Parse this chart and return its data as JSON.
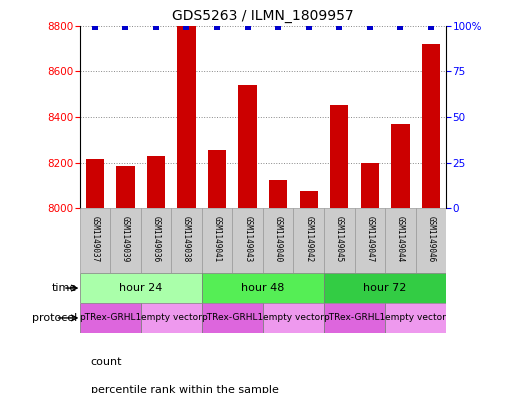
{
  "title": "GDS5263 / ILMN_1809957",
  "samples": [
    "GSM1149037",
    "GSM1149039",
    "GSM1149036",
    "GSM1149038",
    "GSM1149041",
    "GSM1149043",
    "GSM1149040",
    "GSM1149042",
    "GSM1149045",
    "GSM1149047",
    "GSM1149044",
    "GSM1149046"
  ],
  "counts": [
    8215,
    8185,
    8230,
    8800,
    8255,
    8540,
    8125,
    8075,
    8450,
    8200,
    8370,
    8720
  ],
  "percentile_ranks": [
    99,
    99,
    99,
    99,
    99,
    99,
    99,
    99,
    99,
    99,
    99,
    99
  ],
  "y_min": 8000,
  "y_max": 8800,
  "y_ticks": [
    8000,
    8200,
    8400,
    8600,
    8800
  ],
  "y2_ticks": [
    0,
    25,
    50,
    75,
    100
  ],
  "bar_color": "#CC0000",
  "dot_color": "#0000CC",
  "time_groups": [
    {
      "label": "hour 24",
      "start": 0,
      "end": 4,
      "color": "#AAFFAA"
    },
    {
      "label": "hour 48",
      "start": 4,
      "end": 8,
      "color": "#55EE55"
    },
    {
      "label": "hour 72",
      "start": 8,
      "end": 12,
      "color": "#33CC44"
    }
  ],
  "protocol_groups": [
    {
      "label": "pTRex-GRHL1",
      "start": 0,
      "end": 2,
      "color": "#DD66DD"
    },
    {
      "label": "empty vector",
      "start": 2,
      "end": 4,
      "color": "#EE99EE"
    },
    {
      "label": "pTRex-GRHL1",
      "start": 4,
      "end": 6,
      "color": "#DD66DD"
    },
    {
      "label": "empty vector",
      "start": 6,
      "end": 8,
      "color": "#EE99EE"
    },
    {
      "label": "pTRex-GRHL1",
      "start": 8,
      "end": 10,
      "color": "#DD66DD"
    },
    {
      "label": "empty vector",
      "start": 10,
      "end": 12,
      "color": "#EE99EE"
    }
  ],
  "sample_box_color": "#CCCCCC",
  "grid_color": "#888888",
  "bg_color": "#FFFFFF",
  "legend_count_color": "#CC0000",
  "legend_dot_color": "#0000CC"
}
